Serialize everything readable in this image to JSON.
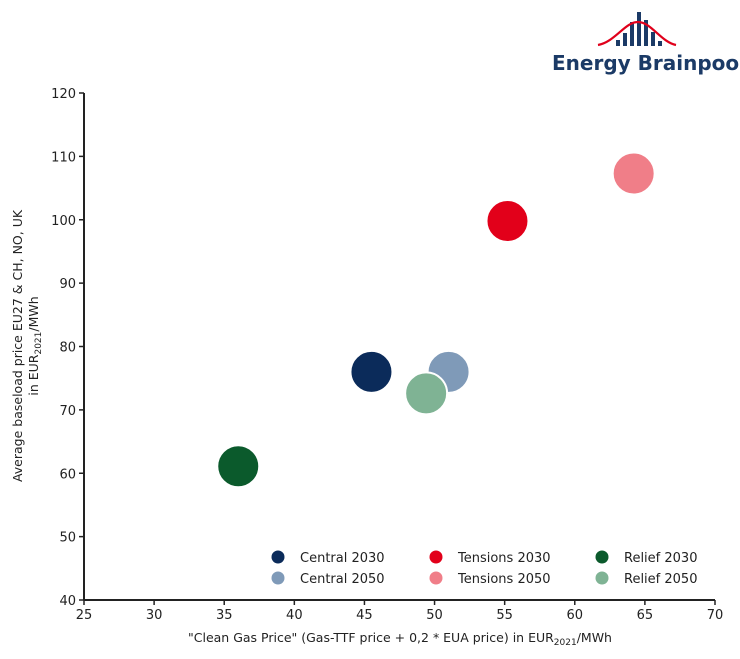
{
  "logo": {
    "text": "Energy Brainpool",
    "bar_color": "#1b3a66",
    "curve_color": "#e0001b"
  },
  "chart_data": {
    "type": "scatter",
    "xlabel_parts": [
      "\"Clean Gas Price\" (Gas-TTF price + 0,2 * EUA price) in EUR",
      "2021",
      "/MWh"
    ],
    "ylabel_line1": "Average baseload price EU27 & CH, NO, UK",
    "ylabel_line2_parts": [
      "in EUR",
      "2021",
      "/MWh"
    ],
    "xlim": [
      25,
      70
    ],
    "ylim": [
      40,
      120
    ],
    "xticks": [
      25,
      30,
      35,
      40,
      45,
      50,
      55,
      60,
      65,
      70
    ],
    "yticks": [
      40,
      50,
      60,
      70,
      80,
      90,
      100,
      110,
      120
    ],
    "grid": false,
    "legend_placement": "bottom-right",
    "series": [
      {
        "name": "Central 2030",
        "color": "#0b2b5a",
        "x": 45.5,
        "y": 76
      },
      {
        "name": "Central 2050",
        "color": "#7f9ab8",
        "x": 51.0,
        "y": 76
      },
      {
        "name": "Tensions 2030",
        "color": "#e2001a",
        "x": 55.2,
        "y": 99.8
      },
      {
        "name": "Tensions 2050",
        "color": "#f07e88",
        "x": 64.2,
        "y": 107.3
      },
      {
        "name": "Relief 2030",
        "color": "#0b5a2c",
        "x": 36.0,
        "y": 61.1
      },
      {
        "name": "Relief 2050",
        "color": "#7fb394",
        "x": 49.4,
        "y": 72.6
      }
    ]
  }
}
